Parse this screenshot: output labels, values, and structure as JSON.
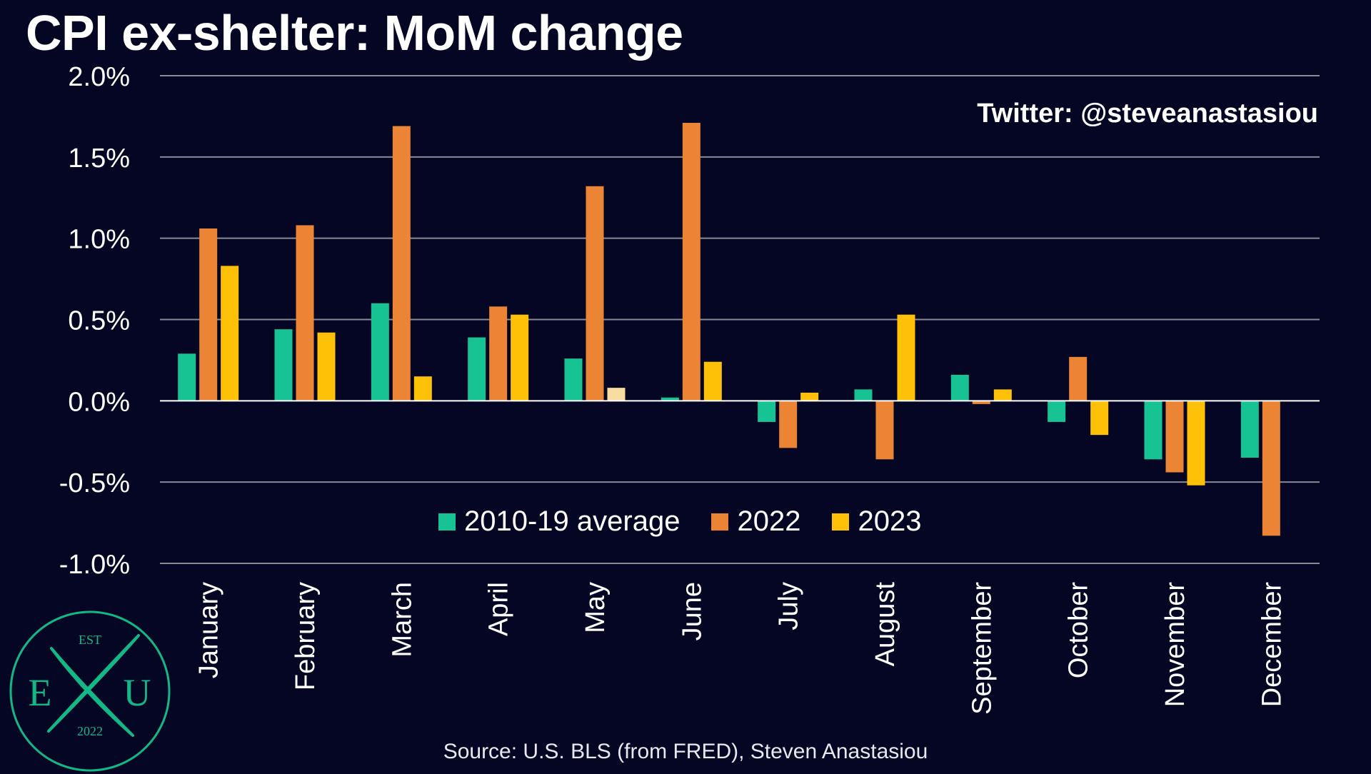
{
  "header": {
    "title": "CPI ex-shelter: MoM change"
  },
  "credit": {
    "handle": "Twitter: @steveanastasiou"
  },
  "footer": {
    "source": "Source: U.S. BLS (from FRED), Steven Anastasiou"
  },
  "logo": {
    "top": "EST",
    "left": "E",
    "right": "U",
    "bottom": "2022",
    "color": "#12b886"
  },
  "colors": {
    "background": "#050624",
    "grid": "#8a8a94",
    "zero_line": "#ffffff",
    "series_2010_19": "#17c392",
    "series_2022": "#ec8436",
    "series_2023": "#ffc107",
    "series_2023_partial": "#f8dda0"
  },
  "chart_data": {
    "type": "bar",
    "title": "CPI ex-shelter: MoM change",
    "ylim": [
      -1.0,
      2.0
    ],
    "yticks": [
      "2.0%",
      "1.5%",
      "1.0%",
      "0.5%",
      "0.0%",
      "-0.5%",
      "-1.0%"
    ],
    "ytick_values": [
      2.0,
      1.5,
      1.0,
      0.5,
      0.0,
      -0.5,
      -1.0
    ],
    "grid": true,
    "legend_position": "bottom-center",
    "categories": [
      "January",
      "February",
      "March",
      "April",
      "May",
      "June",
      "July",
      "August",
      "September",
      "October",
      "November",
      "December"
    ],
    "series": [
      {
        "name": "2010-19 average",
        "color": "#17c392",
        "values": [
          0.29,
          0.44,
          0.6,
          0.39,
          0.26,
          0.02,
          -0.13,
          0.07,
          0.16,
          -0.13,
          -0.36,
          -0.35
        ]
      },
      {
        "name": "2022",
        "color": "#ec8436",
        "values": [
          1.06,
          1.08,
          1.69,
          0.58,
          1.32,
          1.71,
          -0.29,
          -0.36,
          -0.02,
          0.27,
          -0.44,
          -0.83
        ]
      },
      {
        "name": "2023",
        "color": "#ffc107",
        "values": [
          0.83,
          0.42,
          0.15,
          0.53,
          0.08,
          0.24,
          0.05,
          0.53,
          0.07,
          -0.21,
          -0.52,
          null
        ],
        "partial_index": 4,
        "partial_color": "#f8dda0"
      }
    ]
  }
}
